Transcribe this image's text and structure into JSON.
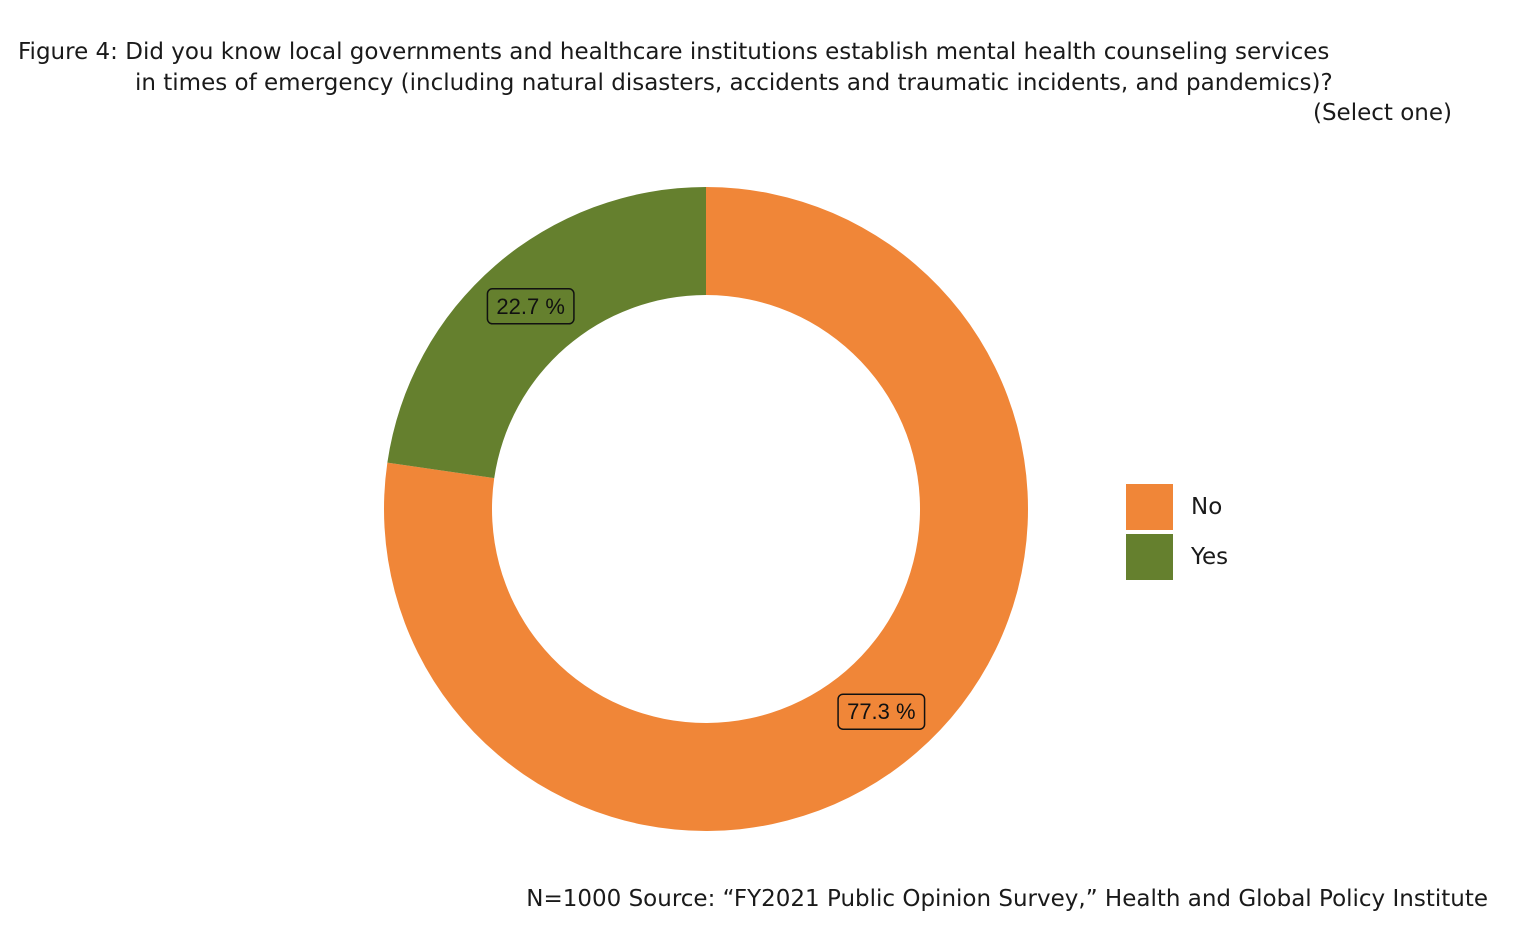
{
  "title": {
    "line1": "Figure 4: Did you know local governments and healthcare institutions establish mental health counseling services",
    "line2": "in times of emergency (including natural disasters, accidents and traumatic incidents, and pandemics)?",
    "line3": "(Select one)"
  },
  "caption": "N=1000 Source: “FY2021 Public Opinion Survey,” Health and Global Policy Institute",
  "chart_data": {
    "type": "pie",
    "variant": "donut",
    "categories": [
      "No",
      "Yes"
    ],
    "values": [
      77.3,
      22.7
    ],
    "labels": [
      "77.3 %",
      "22.7 %"
    ],
    "colors": [
      "#f08638",
      "#65802e"
    ],
    "legend_position": "right",
    "grid": false
  },
  "legend": {
    "items": [
      {
        "label": "No",
        "color": "#f08638"
      },
      {
        "label": "Yes",
        "color": "#65802e"
      }
    ]
  }
}
